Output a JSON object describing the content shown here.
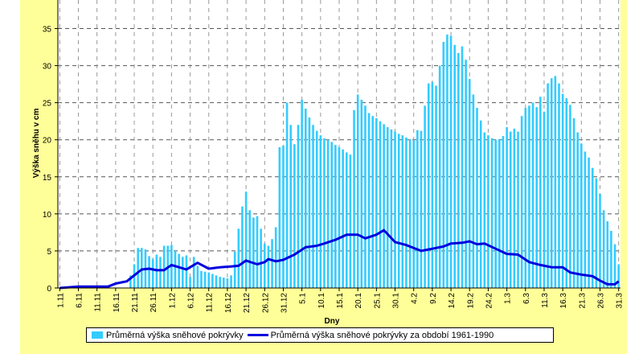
{
  "chart_data": {
    "type": "bar",
    "title": "",
    "xlabel": "Dny",
    "ylabel": "Výška sněhu v cm",
    "ylim": [
      0,
      39
    ],
    "yticks": [
      0,
      5,
      10,
      15,
      20,
      25,
      30,
      35
    ],
    "grid": true,
    "legend_placement": "bottom",
    "x_tick_labels": [
      "1.11",
      "6.11",
      "11.11",
      "16.11",
      "21.11",
      "26.11",
      "1.12",
      "6.12",
      "11.12",
      "16.12",
      "21.12",
      "26.12",
      "31.12",
      "5.1",
      "10.1",
      "15.1",
      "20.1",
      "25.1",
      "30.1",
      "4.2",
      "9.2",
      "14.2",
      "19.2",
      "24.2",
      "1.3",
      "6.3",
      "11.3",
      "16.3",
      "21.3",
      "26.3",
      "31.3"
    ],
    "x_tick_day_index": [
      0,
      5,
      10,
      15,
      20,
      25,
      30,
      35,
      40,
      45,
      50,
      55,
      60,
      65,
      70,
      75,
      80,
      85,
      90,
      95,
      100,
      105,
      110,
      115,
      120,
      125,
      130,
      135,
      140,
      145,
      150
    ],
    "series": [
      {
        "name": "Průměrná výška sněhové pokrývky",
        "type": "bar",
        "color": "#33ccff",
        "values": [
          0,
          0,
          0,
          0,
          0,
          0,
          0,
          0,
          0,
          0,
          0,
          0,
          0,
          0,
          0,
          0,
          0,
          0,
          0,
          1.7,
          3.2,
          5.4,
          5.4,
          5.2,
          4.3,
          3.9,
          4.5,
          4.2,
          5.7,
          5.7,
          5.8,
          5.0,
          4.6,
          4.2,
          4.4,
          1.5,
          4.2,
          3.0,
          2.3,
          2.2,
          2.1,
          1.9,
          1.7,
          1.5,
          1.4,
          1.3,
          1.7,
          4.9,
          8.0,
          11.0,
          13.0,
          10.5,
          9.5,
          9.7,
          8.0,
          6.0,
          5.7,
          6.6,
          8.2,
          19,
          19.2,
          25,
          22,
          19.4,
          22,
          25.4,
          24.2,
          23,
          22,
          21.2,
          20.6,
          20.2,
          20,
          19.7,
          19.3,
          19,
          18.7,
          18.3,
          18.0,
          24,
          26.1,
          25.4,
          24.6,
          23.6,
          23.2,
          22.9,
          22.5,
          22.1,
          21.7,
          21.4,
          21.1,
          20.8,
          20.6,
          20.3,
          20.1,
          19.9,
          21.3,
          21.2,
          24.6,
          27.6,
          27.8,
          27.3,
          30,
          33.2,
          34.2,
          34,
          32.8,
          31.7,
          32.6,
          30.8,
          28.2,
          26.1,
          24.3,
          22.6,
          21,
          20.6,
          20.2,
          20.0,
          20.1,
          20.5,
          21.7,
          21.1,
          21.5,
          21.1,
          23.2,
          24.3,
          24.6,
          25.0,
          24.4,
          25.8,
          23.8,
          27.6,
          28.3,
          28.6,
          27.6,
          26.2,
          25.6,
          24.7,
          22.9,
          21,
          19.5,
          18.4,
          17.6,
          16.2,
          14.8,
          12.7,
          10.5,
          9.0,
          7.7,
          5.9,
          3.2
        ]
      },
      {
        "name": "Průměrná výška sněhové pokrývky za období 1961-1990",
        "type": "line",
        "color": "#0000dd",
        "points": [
          [
            0,
            0
          ],
          [
            5,
            0.2
          ],
          [
            10,
            0.2
          ],
          [
            13,
            0.2
          ],
          [
            15,
            0.6
          ],
          [
            18,
            0.9
          ],
          [
            20,
            1.7
          ],
          [
            22,
            2.5
          ],
          [
            24,
            2.6
          ],
          [
            26,
            2.4
          ],
          [
            28,
            2.4
          ],
          [
            30,
            3.1
          ],
          [
            32,
            2.8
          ],
          [
            34,
            2.5
          ],
          [
            37,
            3.4
          ],
          [
            40,
            2.6
          ],
          [
            43,
            2.8
          ],
          [
            46,
            2.9
          ],
          [
            48,
            3.0
          ],
          [
            50,
            3.7
          ],
          [
            53,
            3.2
          ],
          [
            55,
            3.5
          ],
          [
            56,
            3.9
          ],
          [
            58,
            3.6
          ],
          [
            60,
            3.8
          ],
          [
            63,
            4.5
          ],
          [
            66,
            5.5
          ],
          [
            69,
            5.7
          ],
          [
            71,
            6.0
          ],
          [
            74,
            6.5
          ],
          [
            77,
            7.2
          ],
          [
            80,
            7.2
          ],
          [
            82,
            6.7
          ],
          [
            85,
            7.2
          ],
          [
            87,
            7.8
          ],
          [
            90,
            6.2
          ],
          [
            93,
            5.8
          ],
          [
            97,
            5.0
          ],
          [
            100,
            5.3
          ],
          [
            103,
            5.6
          ],
          [
            105,
            6.0
          ],
          [
            108,
            6.1
          ],
          [
            110,
            6.3
          ],
          [
            112,
            5.9
          ],
          [
            114,
            6.0
          ],
          [
            117,
            5.3
          ],
          [
            120,
            4.6
          ],
          [
            123,
            4.5
          ],
          [
            126,
            3.5
          ],
          [
            129,
            3.1
          ],
          [
            132,
            2.8
          ],
          [
            135,
            2.8
          ],
          [
            137,
            2.1
          ],
          [
            140,
            1.8
          ],
          [
            143,
            1.6
          ],
          [
            145,
            1.0
          ],
          [
            147,
            0.5
          ],
          [
            149,
            0.5
          ],
          [
            150,
            0.9
          ]
        ]
      }
    ]
  }
}
